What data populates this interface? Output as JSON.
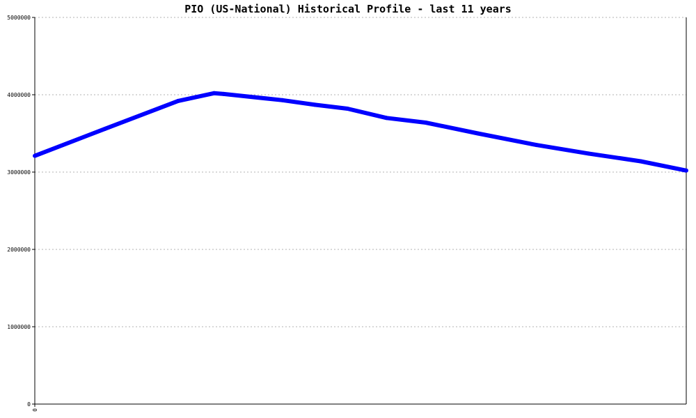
{
  "chart_data": {
    "type": "line",
    "title": "PIO (US-National) Historical Profile - last 11 years",
    "xlabel": "",
    "ylabel": "",
    "x_ticks": [
      "0"
    ],
    "y_ticks": [
      "0",
      "1000000",
      "2000000",
      "3000000",
      "4000000",
      "5000000"
    ],
    "ylim": [
      0,
      5000000
    ],
    "grid": true,
    "line_color": "#0000ff",
    "x": [
      0,
      0.108,
      0.22,
      0.275,
      0.29,
      0.38,
      0.43,
      0.48,
      0.54,
      0.6,
      0.68,
      0.77,
      0.85,
      0.93,
      1.0
    ],
    "values": [
      3210000,
      3560000,
      3920000,
      4020000,
      4010000,
      3930000,
      3870000,
      3820000,
      3700000,
      3640000,
      3500000,
      3350000,
      3240000,
      3140000,
      3020000
    ]
  }
}
